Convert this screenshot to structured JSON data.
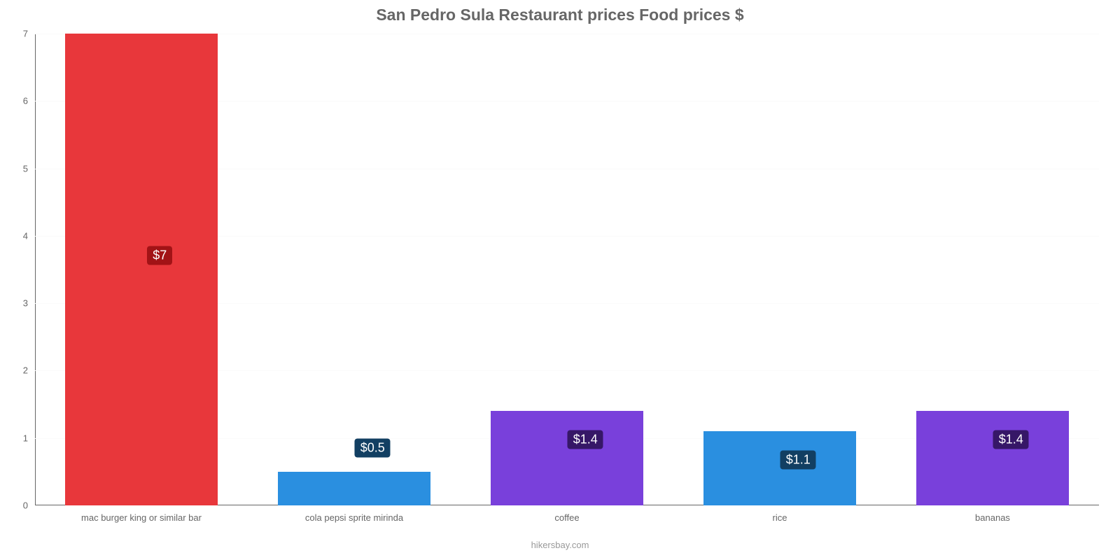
{
  "chart": {
    "type": "bar",
    "title": "San Pedro Sula Restaurant prices Food prices $",
    "title_fontsize": 23,
    "title_color": "#666666",
    "background_color": "#ffffff",
    "credit": "hikersbay.com",
    "credit_fontsize": 13,
    "credit_color": "#999999",
    "ylim": [
      0,
      7
    ],
    "ytick_step": 1,
    "ytick_fontsize": 13,
    "ytick_color": "#666666",
    "axis_color": "#666666",
    "grid_color": "#fafafa",
    "zero_grid_color": "#e8e8e8",
    "xlabel_fontsize": 13,
    "xlabel_color": "#666666",
    "bar_width_ratio": 0.72,
    "categories": [
      "mac burger king or similar bar",
      "cola pepsi sprite mirinda",
      "coffee",
      "rice",
      "bananas"
    ],
    "values": [
      7,
      0.5,
      1.4,
      1.1,
      1.4
    ],
    "bar_colors": [
      "#e8373b",
      "#2a8fe0",
      "#7940db",
      "#2a8fe0",
      "#7940db"
    ],
    "value_labels": [
      "$7",
      "$0.5",
      "$1.4",
      "$1.1",
      "$1.4"
    ],
    "badge_fontsize": 18,
    "badge_bg_colors": [
      "#a21316",
      "#123f62",
      "#361767",
      "#123f62",
      "#361767"
    ],
    "badge_text_color": "#ffffff"
  }
}
